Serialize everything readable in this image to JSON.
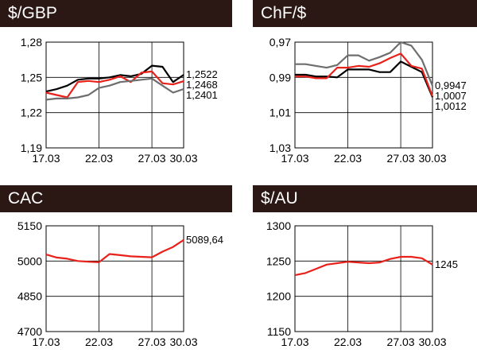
{
  "chart_data": [
    {
      "type": "line",
      "title": "$/GBP",
      "x": [
        "17.03",
        "18.03",
        "19.03",
        "20.03",
        "21.03",
        "22.03",
        "23.03",
        "24.03",
        "25.03",
        "26.03",
        "27.03",
        "28.03",
        "29.03",
        "30.03"
      ],
      "xticks": [
        "17.03",
        "22.03",
        "27.03",
        "30.03"
      ],
      "yticks": [
        "1,28",
        "1,25",
        "1,22",
        "1,19"
      ],
      "ylim": [
        1.19,
        1.28
      ],
      "grid": true,
      "series": [
        {
          "color": "#000000",
          "values": [
            1.238,
            1.24,
            1.243,
            1.248,
            1.249,
            1.249,
            1.25,
            1.252,
            1.251,
            1.253,
            1.26,
            1.259,
            1.246,
            1.2522
          ],
          "end_label": "1,2522"
        },
        {
          "color": "#e8221b",
          "values": [
            1.237,
            1.235,
            1.233,
            1.246,
            1.247,
            1.246,
            1.248,
            1.251,
            1.246,
            1.254,
            1.255,
            1.245,
            1.244,
            1.2468
          ],
          "end_label": "1,2468"
        },
        {
          "color": "#6e6e6e",
          "values": [
            1.231,
            1.232,
            1.232,
            1.233,
            1.235,
            1.241,
            1.243,
            1.246,
            1.247,
            1.248,
            1.249,
            1.243,
            1.237,
            1.2401
          ],
          "end_label": "1,2401"
        }
      ]
    },
    {
      "type": "line",
      "title": "ChF/$",
      "x": [
        "17.03",
        "18.03",
        "19.03",
        "20.03",
        "21.03",
        "22.03",
        "23.03",
        "24.03",
        "25.03",
        "26.03",
        "27.03",
        "28.03",
        "29.03",
        "30.03"
      ],
      "xticks": [
        "17.03",
        "22.03",
        "27.03",
        "30.03"
      ],
      "yticks": [
        "0,97",
        "0,99",
        "1,01",
        "1,03"
      ],
      "ylim": [
        0.97,
        1.03
      ],
      "y_inverted": true,
      "grid": true,
      "series": [
        {
          "color": "#000000",
          "values": [
            0.9885,
            0.9885,
            0.9895,
            0.9895,
            0.99,
            0.9855,
            0.9855,
            0.9855,
            0.987,
            0.987,
            0.981,
            0.984,
            0.987,
            1.0012
          ],
          "end_label": "1,0012"
        },
        {
          "color": "#e8221b",
          "values": [
            0.9895,
            0.9895,
            0.9905,
            0.9905,
            0.9845,
            0.9845,
            0.9835,
            0.984,
            0.982,
            0.979,
            0.9765,
            0.9835,
            0.985,
            1.0007
          ],
          "end_label": "1,0007"
        },
        {
          "color": "#6e6e6e",
          "values": [
            0.9825,
            0.9825,
            0.9835,
            0.9845,
            0.983,
            0.9775,
            0.9775,
            0.9805,
            0.9785,
            0.976,
            0.97,
            0.972,
            0.98,
            0.9947
          ],
          "end_label": "0,9947"
        }
      ]
    },
    {
      "type": "line",
      "title": "CAC",
      "x": [
        "17.03",
        "18.03",
        "19.03",
        "20.03",
        "21.03",
        "22.03",
        "23.03",
        "24.03",
        "25.03",
        "26.03",
        "27.03",
        "28.03",
        "29.03",
        "30.03"
      ],
      "xticks": [
        "17.03",
        "22.03",
        "27.03",
        "30.03"
      ],
      "yticks": [
        "5150",
        "5000",
        "4850",
        "4700"
      ],
      "ylim": [
        4700,
        5150
      ],
      "grid": true,
      "series": [
        {
          "color": "#e8221b",
          "values": [
            5028,
            5015,
            5010,
            5000,
            4997,
            4995,
            5030,
            5025,
            5020,
            5018,
            5016,
            5040,
            5060,
            5089.64
          ],
          "end_label": "5089,64"
        }
      ]
    },
    {
      "type": "line",
      "title": "$/AU",
      "x": [
        "17.03",
        "18.03",
        "19.03",
        "20.03",
        "21.03",
        "22.03",
        "23.03",
        "24.03",
        "25.03",
        "26.03",
        "27.03",
        "28.03",
        "29.03",
        "30.03"
      ],
      "xticks": [
        "17.03",
        "22.03",
        "27.03",
        "30.03"
      ],
      "yticks": [
        "1300",
        "1250",
        "1200",
        "1150"
      ],
      "ylim": [
        1150,
        1300
      ],
      "grid": true,
      "series": [
        {
          "color": "#e8221b",
          "values": [
            1230,
            1233,
            1239,
            1245,
            1247,
            1249,
            1248,
            1247,
            1248,
            1253,
            1256,
            1256,
            1254,
            1245
          ],
          "end_label": "1245"
        }
      ]
    }
  ]
}
